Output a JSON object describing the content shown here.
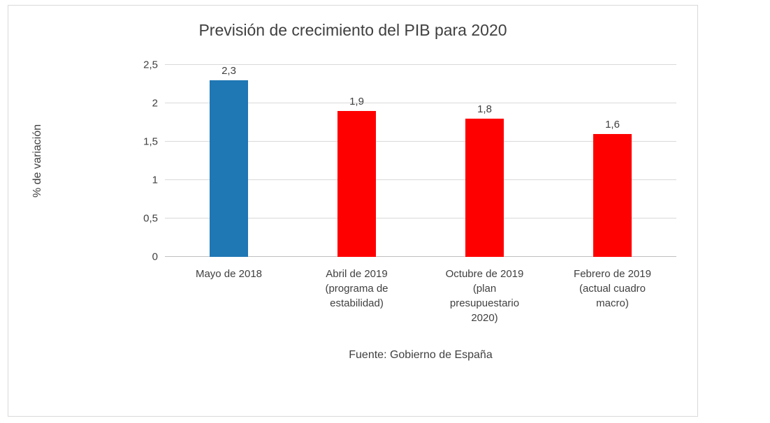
{
  "chart": {
    "title": "Previsión de crecimiento del PIB para 2020",
    "ylabel": "% de variación",
    "source": "Fuente: Gobierno de España"
  },
  "chart_data": {
    "type": "bar",
    "title": "Previsión de crecimiento del PIB para 2020",
    "ylabel": "% de variación",
    "xlabel": "",
    "source": "Fuente: Gobierno de España",
    "categories": [
      "Mayo de 2018",
      "Abril de 2019 (programa de estabilidad)",
      "Octubre de 2019 (plan presupuestario 2020)",
      "Febrero de 2019 (actual cuadro macro)"
    ],
    "category_lines": [
      [
        "Mayo de 2018"
      ],
      [
        "Abril de 2019",
        "(programa de",
        "estabilidad)"
      ],
      [
        "Octubre de 2019",
        "(plan",
        "presupuestario",
        "2020)"
      ],
      [
        "Febrero de 2019",
        "(actual cuadro",
        "macro)"
      ]
    ],
    "values": [
      2.3,
      1.9,
      1.8,
      1.6
    ],
    "value_labels": [
      "2,3",
      "1,9",
      "1,8",
      "1,6"
    ],
    "bar_colors": [
      "#1F77B4",
      "#FF0000",
      "#FF0000",
      "#FF0000"
    ],
    "ylim": [
      0,
      2.5
    ],
    "yticks": [
      0,
      0.5,
      1,
      1.5,
      2,
      2.5
    ],
    "ytick_labels": [
      "0",
      "0,5",
      "1",
      "1,5",
      "2",
      "2,5"
    ],
    "grid": true,
    "legend": "none"
  }
}
